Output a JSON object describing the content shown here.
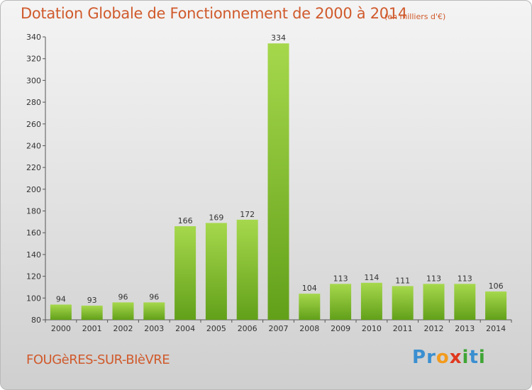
{
  "header": {
    "title": "Dotation Globale de Fonctionnement de 2000 à 2014",
    "unit": "(en milliers d'€)"
  },
  "footer": {
    "city": "FOUGèRES-SUR-BIèVRE",
    "logo": [
      {
        "char": "P",
        "color": "#3a8fd0"
      },
      {
        "char": "r",
        "color": "#3a8fd0"
      },
      {
        "char": "o",
        "color": "#f29b1d"
      },
      {
        "char": "x",
        "color": "#e0381f"
      },
      {
        "char": "i",
        "color": "#3fa535"
      },
      {
        "char": "t",
        "color": "#3a8fd0"
      },
      {
        "char": "i",
        "color": "#3fa535"
      }
    ]
  },
  "colors": {
    "bar_light": "#a6d84c",
    "bar_dark": "#62a01a",
    "axis": "#555555",
    "grid": "#aaaaaa"
  },
  "chart_data": {
    "type": "bar",
    "title": "Dotation Globale de Fonctionnement de 2000 à 2014",
    "xlabel": "",
    "ylabel": "",
    "categories": [
      "2000",
      "2001",
      "2002",
      "2003",
      "2004",
      "2005",
      "2006",
      "2007",
      "2008",
      "2009",
      "2010",
      "2011",
      "2012",
      "2013",
      "2014"
    ],
    "values": [
      94,
      93,
      96,
      96,
      166,
      169,
      172,
      334,
      104,
      113,
      114,
      111,
      113,
      113,
      106
    ],
    "ylim": [
      80,
      340
    ],
    "yticks": [
      80,
      100,
      120,
      140,
      160,
      180,
      200,
      220,
      240,
      260,
      280,
      300,
      320,
      340
    ],
    "grid": false
  }
}
